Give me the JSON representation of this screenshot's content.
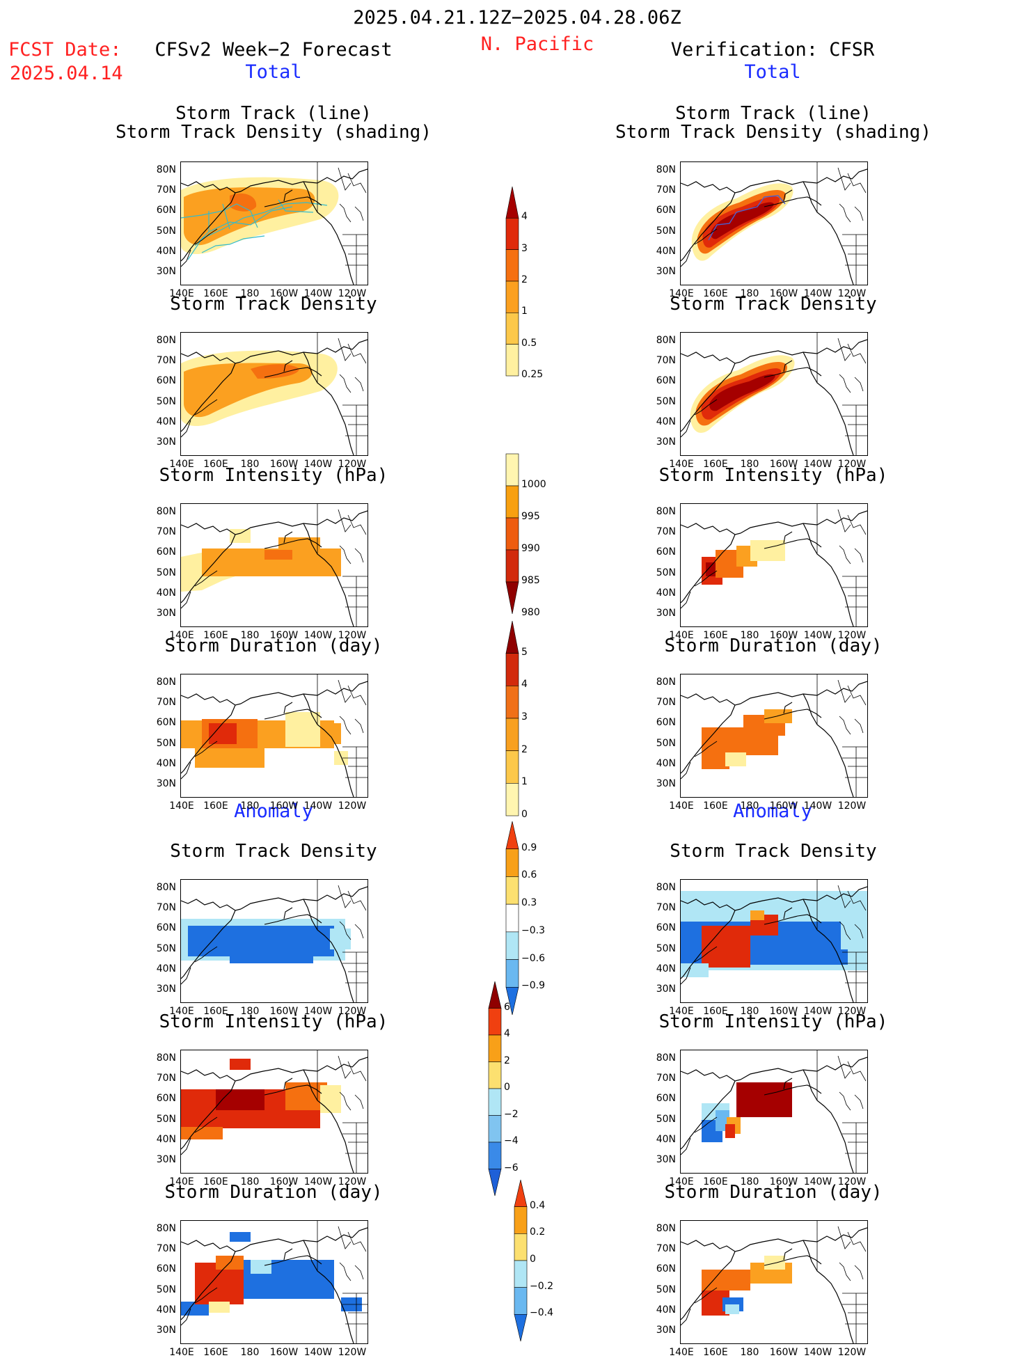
{
  "header": {
    "date_range": "2025.04.21.12Z−2025.04.28.06Z",
    "region": "N. Pacific",
    "fcst_label": "FCST Date:",
    "fcst_date": "2025.04.14",
    "left_title": "CFSv2 Week−2 Forecast",
    "right_title": "Verification: CFSR",
    "total_label": "Total",
    "anomaly_label": "Anomaly"
  },
  "panel_titles": {
    "track_line": "Storm Track (line)",
    "track_shading": "Storm Track Density (shading)",
    "density": "Storm Track Density",
    "intensity": "Storm Intensity (hPa)",
    "duration": "Storm Duration (day)"
  },
  "axes": {
    "lat_labels": [
      "80N",
      "70N",
      "60N",
      "50N",
      "40N",
      "30N"
    ],
    "lon_labels": [
      "140E",
      "160E",
      "180",
      "160W",
      "140W",
      "120W"
    ]
  },
  "colorbars": {
    "density_total": {
      "labels": [
        "4",
        "3",
        "2",
        "1",
        "0.5",
        "0.25"
      ],
      "colors": [
        "#a50000",
        "#e02a0a",
        "#f57010",
        "#fba020",
        "#fcc84a",
        "#fff0a0"
      ]
    },
    "intensity_total": {
      "labels": [
        "1000",
        "995",
        "990",
        "985",
        "980"
      ],
      "colors": [
        "#fff5b0",
        "#f8a010",
        "#ee5c0e",
        "#d22a0c",
        "#8f0000"
      ]
    },
    "duration_total": {
      "labels": [
        "5",
        "4",
        "3",
        "2",
        "1",
        "0"
      ],
      "colors": [
        "#8f0000",
        "#d22a0c",
        "#f07018",
        "#f8a020",
        "#fcc84a",
        "#fff5b0"
      ]
    },
    "density_anom": {
      "labels": [
        "0.9",
        "0.6",
        "0.3",
        "−0.3",
        "−0.6",
        "−0.9"
      ],
      "colors": [
        "#f04010",
        "#f8a018",
        "#fce070",
        "#ffffff",
        "#b0e6f5",
        "#6ab8f0",
        "#1e70e0"
      ]
    },
    "intensity_anom": {
      "labels": [
        "6",
        "4",
        "2",
        "0",
        "−2",
        "−4",
        "−6"
      ],
      "colors": [
        "#8f0000",
        "#f04010",
        "#f8a018",
        "#fce070",
        "#b0e6f5",
        "#80c4f0",
        "#3a8ae8",
        "#1e60d8"
      ]
    },
    "duration_anom": {
      "labels": [
        "0.4",
        "0.2",
        "0",
        "−0.2",
        "−0.4"
      ],
      "colors": [
        "#f04010",
        "#f8a018",
        "#fce070",
        "#b0e6f5",
        "#6ab8f0",
        "#1e70e0"
      ]
    }
  }
}
